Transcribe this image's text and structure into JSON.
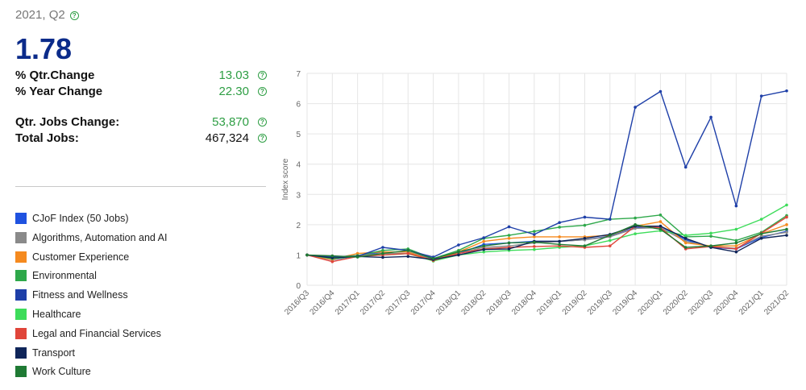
{
  "header": {
    "period": "2021, Q2",
    "value": "1.78"
  },
  "metrics": [
    {
      "label": "% Qtr.Change",
      "value": "13.03",
      "color": "#2e9e44"
    },
    {
      "label": "% Year Change",
      "value": "22.30",
      "color": "#2e9e44"
    },
    {
      "label": "Qtr. Jobs Change:",
      "value": "53,870",
      "color": "#2e9e44"
    },
    {
      "label": "Total Jobs:",
      "value": "467,324",
      "color": "#111111"
    }
  ],
  "icons": {
    "help": "question-circle-icon"
  },
  "chart_data": {
    "type": "line",
    "ylabel": "Index score",
    "ylim": [
      0,
      7
    ],
    "yticks": [
      0,
      1,
      2,
      3,
      4,
      5,
      6,
      7
    ],
    "grid": true,
    "legend_position": "left",
    "categories": [
      "2016/Q3",
      "2016/Q4",
      "2017/Q1",
      "2017/Q2",
      "2017/Q3",
      "2017/Q4",
      "2018/Q1",
      "2018/Q2",
      "2018/Q3",
      "2018/Q4",
      "2019/Q1",
      "2019/Q2",
      "2019/Q3",
      "2019/Q4",
      "2020/Q1",
      "2020/Q2",
      "2020/Q3",
      "2020/Q4",
      "2021/Q1",
      "2021/Q2"
    ],
    "series": [
      {
        "name": "CJoF Index (50 Jobs)",
        "color": "#1f52e0",
        "values": [
          1.0,
          0.84,
          0.97,
          1.1,
          1.1,
          0.85,
          1.05,
          1.35,
          1.4,
          1.45,
          1.45,
          1.5,
          1.62,
          1.9,
          1.95,
          1.5,
          1.25,
          1.2,
          1.58,
          1.78
        ]
      },
      {
        "name": "Algorithms, Automation and AI",
        "color": "#8a8a8a",
        "values": [
          1.0,
          0.85,
          0.98,
          1.05,
          1.05,
          0.85,
          1.05,
          1.25,
          1.3,
          1.4,
          1.45,
          1.5,
          1.6,
          1.88,
          1.9,
          1.45,
          1.28,
          1.22,
          1.62,
          1.75
        ]
      },
      {
        "name": "Customer Experience",
        "color": "#f58a1f",
        "values": [
          1.0,
          0.85,
          1.05,
          1.1,
          1.1,
          0.82,
          1.1,
          1.45,
          1.55,
          1.6,
          1.6,
          1.6,
          1.65,
          1.95,
          2.1,
          1.4,
          1.3,
          1.3,
          1.7,
          2.0
        ]
      },
      {
        "name": "Environmental",
        "color": "#2ea84a",
        "values": [
          1.0,
          0.93,
          0.98,
          1.15,
          1.2,
          0.88,
          1.15,
          1.55,
          1.65,
          1.78,
          1.92,
          1.98,
          2.18,
          2.22,
          2.32,
          1.6,
          1.62,
          1.48,
          1.75,
          2.3
        ]
      },
      {
        "name": "Fitness and Wellness",
        "color": "#1e3fa8",
        "values": [
          1.0,
          0.95,
          0.95,
          1.25,
          1.15,
          0.93,
          1.33,
          1.57,
          1.93,
          1.68,
          2.07,
          2.25,
          2.18,
          5.88,
          6.4,
          3.9,
          5.55,
          2.62,
          6.25,
          6.42
        ]
      },
      {
        "name": "Healthcare",
        "color": "#3ddc5a",
        "values": [
          1.0,
          0.88,
          0.95,
          1.0,
          1.05,
          0.8,
          1.0,
          1.1,
          1.15,
          1.18,
          1.25,
          1.3,
          1.48,
          1.7,
          1.8,
          1.65,
          1.72,
          1.85,
          2.18,
          2.65
        ]
      },
      {
        "name": "Legal and Financial Services",
        "color": "#e0453a",
        "values": [
          1.0,
          0.78,
          0.95,
          1.0,
          1.05,
          0.82,
          1.05,
          1.2,
          1.25,
          1.28,
          1.3,
          1.25,
          1.3,
          1.95,
          1.9,
          1.2,
          1.28,
          1.2,
          1.72,
          2.25
        ]
      },
      {
        "name": "Transport",
        "color": "#0f2559",
        "values": [
          1.0,
          0.9,
          0.95,
          0.92,
          0.95,
          0.85,
          1.0,
          1.18,
          1.2,
          1.45,
          1.45,
          1.55,
          1.68,
          1.95,
          1.95,
          1.55,
          1.25,
          1.1,
          1.55,
          1.65
        ]
      },
      {
        "name": "Work Culture",
        "color": "#1f7a34",
        "values": [
          1.0,
          0.97,
          0.93,
          1.05,
          1.15,
          0.88,
          1.1,
          1.3,
          1.4,
          1.42,
          1.35,
          1.3,
          1.65,
          2.0,
          1.85,
          1.25,
          1.3,
          1.4,
          1.7,
          1.85
        ]
      }
    ]
  }
}
